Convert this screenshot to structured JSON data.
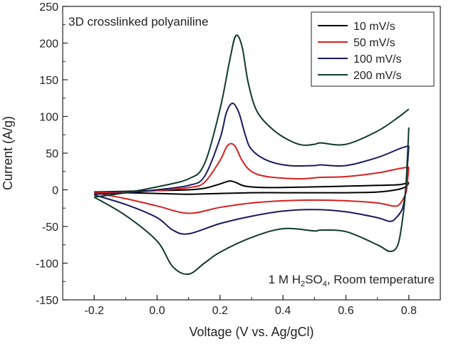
{
  "chart_data": {
    "type": "line",
    "title": "",
    "xlabel": "Voltage (V vs. Ag/gCl)",
    "ylabel": "Current (A/g)",
    "xlim": [
      -0.3,
      0.9
    ],
    "ylim": [
      -150,
      250
    ],
    "x_ticks": [
      -0.2,
      0.0,
      0.2,
      0.4,
      0.6,
      0.8
    ],
    "x_tick_labels": [
      "-0.2",
      "0.0",
      "0.2",
      "0.4",
      "0.6",
      "0.8"
    ],
    "y_ticks": [
      -150,
      -100,
      -50,
      0,
      50,
      100,
      150,
      200,
      250
    ],
    "y_tick_labels": [
      "-150",
      "-100",
      "-50",
      "0",
      "50",
      "100",
      "150",
      "200",
      "250"
    ],
    "grid": false,
    "legend_position": "top-right",
    "annotations": {
      "top_left": "3D crosslinked polyaniline",
      "bottom_right_prefix": "1 M H",
      "bottom_right_sub1": "2",
      "bottom_right_mid": "SO",
      "bottom_right_sub2": "4",
      "bottom_right_suffix": ", Room temperature"
    },
    "series": [
      {
        "name": "10 mV/s",
        "color": "#000000",
        "anodic": [
          [
            -0.2,
            -3
          ],
          [
            -0.1,
            -2
          ],
          [
            0.0,
            -1
          ],
          [
            0.1,
            0
          ],
          [
            0.15,
            2
          ],
          [
            0.2,
            8
          ],
          [
            0.23,
            12
          ],
          [
            0.25,
            10
          ],
          [
            0.28,
            5
          ],
          [
            0.35,
            3
          ],
          [
            0.5,
            4
          ],
          [
            0.6,
            5
          ],
          [
            0.7,
            6
          ],
          [
            0.77,
            7
          ],
          [
            0.8,
            10
          ]
        ],
        "cathodic": [
          [
            0.8,
            10
          ],
          [
            0.79,
            4
          ],
          [
            0.76,
            0
          ],
          [
            0.7,
            -3
          ],
          [
            0.6,
            -4
          ],
          [
            0.5,
            -4
          ],
          [
            0.4,
            -4
          ],
          [
            0.3,
            -4
          ],
          [
            0.2,
            -5
          ],
          [
            0.1,
            -6
          ],
          [
            0.0,
            -5
          ],
          [
            -0.1,
            -4
          ],
          [
            -0.2,
            -3
          ]
        ]
      },
      {
        "name": "50 mV/s",
        "color": "#d62020",
        "anodic": [
          [
            -0.2,
            -4
          ],
          [
            -0.1,
            -3
          ],
          [
            0.0,
            -1
          ],
          [
            0.1,
            3
          ],
          [
            0.15,
            10
          ],
          [
            0.2,
            40
          ],
          [
            0.22,
            58
          ],
          [
            0.235,
            63
          ],
          [
            0.25,
            58
          ],
          [
            0.27,
            40
          ],
          [
            0.3,
            25
          ],
          [
            0.35,
            18
          ],
          [
            0.45,
            15
          ],
          [
            0.52,
            17
          ],
          [
            0.6,
            18
          ],
          [
            0.7,
            23
          ],
          [
            0.77,
            29
          ],
          [
            0.8,
            31
          ]
        ],
        "cathodic": [
          [
            0.8,
            31
          ],
          [
            0.795,
            10
          ],
          [
            0.79,
            -5
          ],
          [
            0.77,
            -20
          ],
          [
            0.75,
            -22
          ],
          [
            0.7,
            -18
          ],
          [
            0.6,
            -15
          ],
          [
            0.5,
            -14
          ],
          [
            0.4,
            -15
          ],
          [
            0.3,
            -18
          ],
          [
            0.2,
            -24
          ],
          [
            0.1,
            -32
          ],
          [
            0.0,
            -22
          ],
          [
            -0.1,
            -12
          ],
          [
            -0.2,
            -4
          ]
        ]
      },
      {
        "name": "100 mV/s",
        "color": "#1a1a5e",
        "anodic": [
          [
            -0.2,
            -6
          ],
          [
            -0.1,
            -4
          ],
          [
            0.0,
            0
          ],
          [
            0.1,
            6
          ],
          [
            0.15,
            18
          ],
          [
            0.2,
            70
          ],
          [
            0.22,
            105
          ],
          [
            0.24,
            118
          ],
          [
            0.26,
            105
          ],
          [
            0.28,
            75
          ],
          [
            0.3,
            55
          ],
          [
            0.35,
            40
          ],
          [
            0.42,
            33
          ],
          [
            0.5,
            33
          ],
          [
            0.52,
            34
          ],
          [
            0.6,
            33
          ],
          [
            0.7,
            44
          ],
          [
            0.77,
            56
          ],
          [
            0.8,
            60
          ]
        ],
        "cathodic": [
          [
            0.8,
            60
          ],
          [
            0.795,
            30
          ],
          [
            0.79,
            0
          ],
          [
            0.78,
            -25
          ],
          [
            0.76,
            -38
          ],
          [
            0.74,
            -43
          ],
          [
            0.7,
            -38
          ],
          [
            0.6,
            -30
          ],
          [
            0.5,
            -27
          ],
          [
            0.4,
            -29
          ],
          [
            0.3,
            -36
          ],
          [
            0.2,
            -46
          ],
          [
            0.1,
            -60
          ],
          [
            0.05,
            -55
          ],
          [
            0.0,
            -38
          ],
          [
            -0.1,
            -20
          ],
          [
            -0.2,
            -7
          ]
        ]
      },
      {
        "name": "200 mV/s",
        "color": "#0f3a2a",
        "anodic": [
          [
            -0.2,
            -10
          ],
          [
            -0.1,
            -4
          ],
          [
            0.0,
            4
          ],
          [
            0.1,
            15
          ],
          [
            0.15,
            35
          ],
          [
            0.2,
            110
          ],
          [
            0.23,
            175
          ],
          [
            0.25,
            210
          ],
          [
            0.27,
            195
          ],
          [
            0.29,
            145
          ],
          [
            0.32,
            105
          ],
          [
            0.38,
            78
          ],
          [
            0.45,
            62
          ],
          [
            0.5,
            62
          ],
          [
            0.52,
            64
          ],
          [
            0.6,
            62
          ],
          [
            0.7,
            80
          ],
          [
            0.77,
            100
          ],
          [
            0.8,
            110
          ]
        ],
        "cathodic": [
          [
            0.8,
            85
          ],
          [
            0.795,
            40
          ],
          [
            0.79,
            0
          ],
          [
            0.78,
            -40
          ],
          [
            0.765,
            -75
          ],
          [
            0.74,
            -84
          ],
          [
            0.7,
            -75
          ],
          [
            0.6,
            -57
          ],
          [
            0.52,
            -55
          ],
          [
            0.5,
            -56
          ],
          [
            0.4,
            -53
          ],
          [
            0.3,
            -65
          ],
          [
            0.2,
            -85
          ],
          [
            0.15,
            -100
          ],
          [
            0.1,
            -115
          ],
          [
            0.05,
            -105
          ],
          [
            0.0,
            -70
          ],
          [
            -0.1,
            -35
          ],
          [
            -0.2,
            -10
          ]
        ]
      }
    ]
  }
}
